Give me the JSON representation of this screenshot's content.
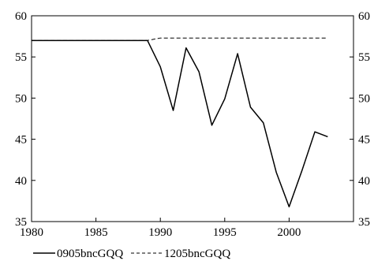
{
  "chart_data": {
    "type": "line",
    "title": "",
    "xlabel": "",
    "ylabel": "",
    "xlim": [
      1980,
      2005
    ],
    "ylim": [
      35,
      60
    ],
    "x_ticks": [
      1980,
      1985,
      1990,
      1995,
      2000
    ],
    "y_ticks": [
      35,
      40,
      45,
      50,
      55,
      60
    ],
    "y_tick_labels_both_sides": true,
    "grid": false,
    "legend_position": "bottom-left",
    "series": [
      {
        "name": "0905bncGQQ",
        "style": "solid",
        "color": "#000000",
        "points": [
          [
            1980,
            57.0
          ],
          [
            1981,
            57.0
          ],
          [
            1982,
            57.0
          ],
          [
            1983,
            57.0
          ],
          [
            1984,
            57.0
          ],
          [
            1985,
            57.0
          ],
          [
            1986,
            57.0
          ],
          [
            1987,
            57.0
          ],
          [
            1988,
            57.0
          ],
          [
            1989,
            57.0
          ],
          [
            1990,
            53.8
          ],
          [
            1991,
            48.5
          ],
          [
            1992,
            56.1
          ],
          [
            1993,
            53.2
          ],
          [
            1994,
            46.7
          ],
          [
            1995,
            49.9
          ],
          [
            1996,
            55.4
          ],
          [
            1997,
            48.9
          ],
          [
            1998,
            47.0
          ],
          [
            1999,
            41.0
          ],
          [
            2000,
            36.8
          ],
          [
            2001,
            41.2
          ],
          [
            2002,
            45.9
          ],
          [
            2003,
            45.3
          ]
        ]
      },
      {
        "name": "1205bncGQQ",
        "style": "dashed",
        "color": "#000000",
        "points": [
          [
            1980,
            57.0
          ],
          [
            1981,
            57.0
          ],
          [
            1982,
            57.0
          ],
          [
            1983,
            57.0
          ],
          [
            1984,
            57.0
          ],
          [
            1985,
            57.0
          ],
          [
            1986,
            57.0
          ],
          [
            1987,
            57.0
          ],
          [
            1988,
            57.0
          ],
          [
            1989,
            57.0
          ],
          [
            1990,
            57.3
          ],
          [
            1991,
            57.3
          ],
          [
            1992,
            57.3
          ],
          [
            1993,
            57.3
          ],
          [
            1994,
            57.3
          ],
          [
            1995,
            57.3
          ],
          [
            1996,
            57.3
          ],
          [
            1997,
            57.3
          ],
          [
            1998,
            57.3
          ],
          [
            1999,
            57.3
          ],
          [
            2000,
            57.3
          ],
          [
            2001,
            57.3
          ],
          [
            2002,
            57.3
          ],
          [
            2003,
            57.3
          ]
        ]
      }
    ]
  }
}
